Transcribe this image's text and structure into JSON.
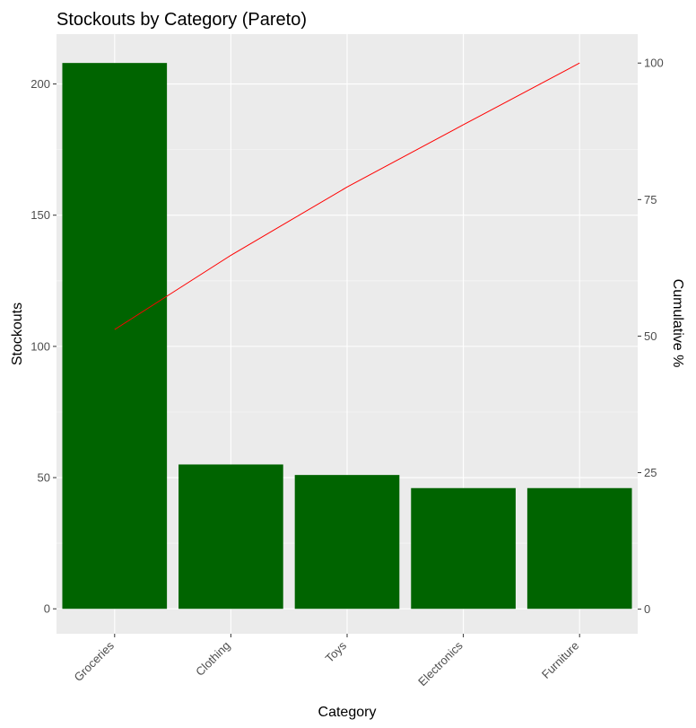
{
  "chart_data": {
    "type": "bar",
    "title": "Stockouts by Category (Pareto)",
    "xlabel": "Category",
    "ylabel": "Stockouts",
    "y2label": "Cumulative %",
    "categories": [
      "Groceries",
      "Clothing",
      "Toys",
      "Electronics",
      "Furniture"
    ],
    "series": [
      {
        "values": [
          208,
          55,
          51,
          46,
          46
        ],
        "kind": "bar",
        "axis": "left"
      },
      {
        "values": [
          51.2,
          64.8,
          77.3,
          88.7,
          100
        ],
        "kind": "line",
        "axis": "right"
      }
    ],
    "ylim": [
      -9.5,
      219
    ],
    "y2lim": [
      -4.5,
      105.3
    ],
    "yticks": [
      0,
      50,
      100,
      150,
      200
    ],
    "y2ticks": [
      0,
      25,
      50,
      75,
      100
    ],
    "grid": true,
    "legend": "none"
  },
  "colors": {
    "bar": "#006400",
    "line": "#ff0000",
    "panel": "#ebebeb",
    "grid_major": "#ffffff",
    "grid_minor": "#f5f5f5"
  }
}
